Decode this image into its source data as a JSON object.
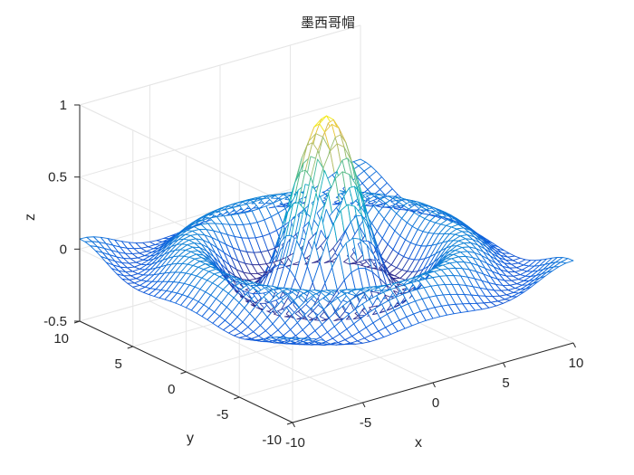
{
  "chart_data": {
    "type": "surface-mesh",
    "title": "墨西哥帽",
    "function": "z = sin(sqrt(x^2 + y^2)) / sqrt(x^2 + y^2)",
    "x": {
      "label": "x",
      "lim": [
        -10,
        10
      ],
      "ticks": [
        -10,
        -5,
        0,
        5,
        10
      ],
      "tick_labels": [
        "-10",
        "-5",
        "0",
        "5",
        "10"
      ]
    },
    "y": {
      "label": "y",
      "lim": [
        -10,
        10
      ],
      "ticks": [
        -10,
        -5,
        0,
        5,
        10
      ],
      "tick_labels": [
        "-10",
        "-5",
        "0",
        "5",
        "10"
      ]
    },
    "z": {
      "label": "z",
      "lim": [
        -0.5,
        1
      ],
      "ticks": [
        -0.5,
        0,
        0.5,
        1
      ],
      "tick_labels": [
        "-0.5",
        "0",
        "0.5",
        "1"
      ]
    },
    "mesh_step": 0.5,
    "peak": {
      "x": 0,
      "y": 0,
      "z": 1
    },
    "colormap": "parula",
    "grid": true
  }
}
